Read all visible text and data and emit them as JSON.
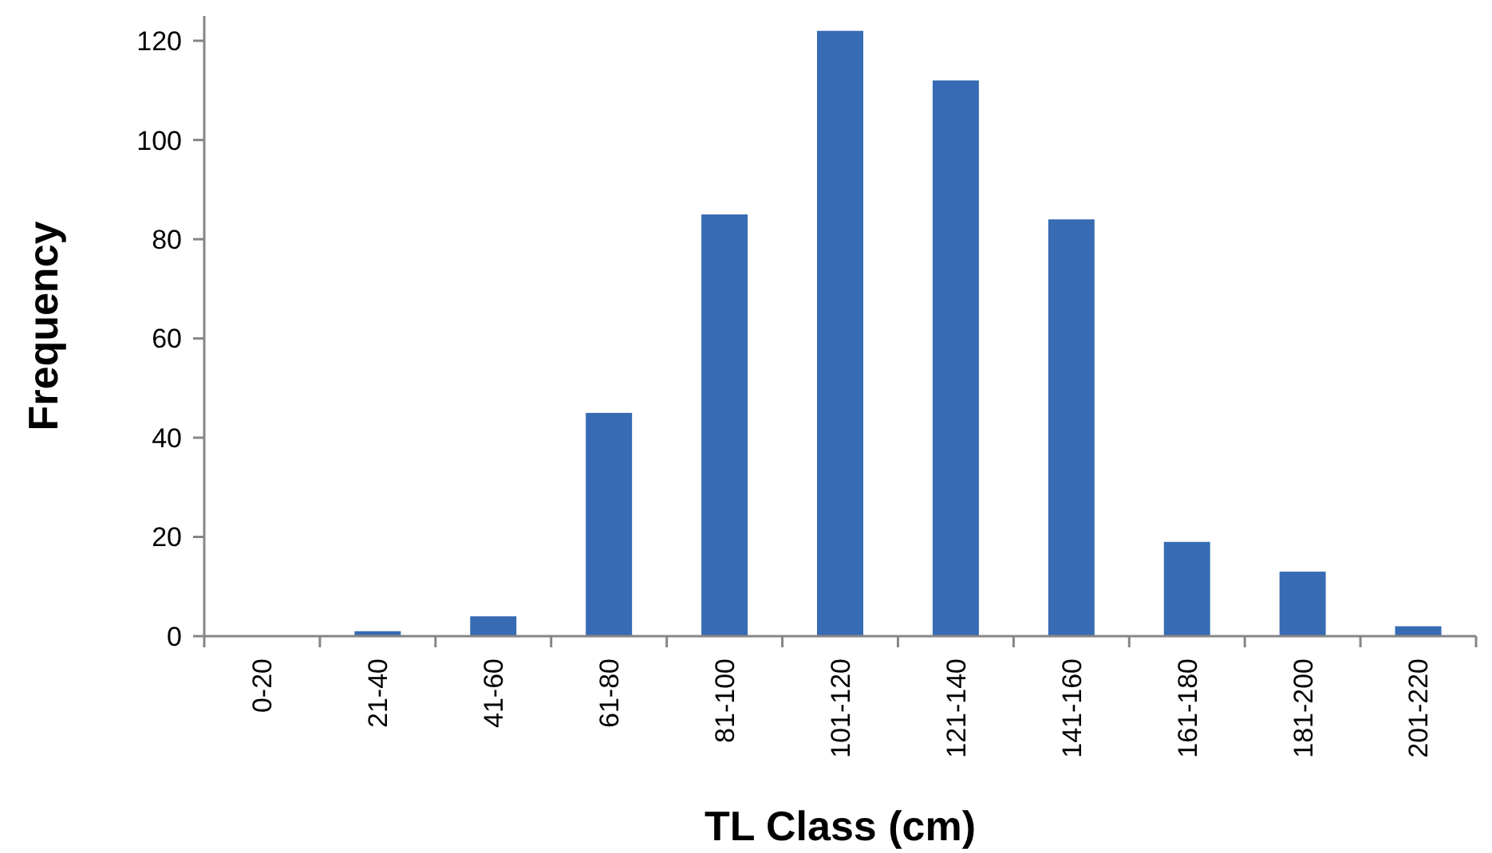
{
  "chart_data": {
    "type": "bar",
    "xlabel": "TL Class (cm)",
    "ylabel": "Frequency",
    "categories": [
      "0-20",
      "21-40",
      "41-60",
      "61-80",
      "81-100",
      "101-120",
      "121-140",
      "141-160",
      "161-180",
      "181-200",
      "201-220"
    ],
    "values": [
      0,
      1,
      4,
      45,
      85,
      122,
      112,
      84,
      19,
      13,
      2
    ],
    "color": "#376bb3",
    "ylim": [
      0,
      125
    ],
    "yticks": [
      0,
      20,
      40,
      60,
      80,
      100,
      120
    ],
    "grid": false
  }
}
